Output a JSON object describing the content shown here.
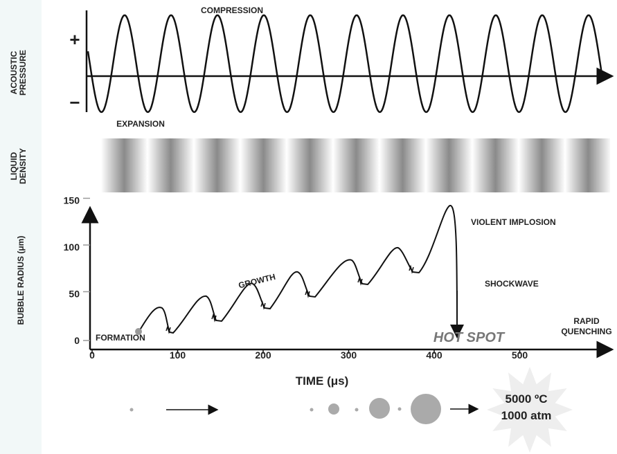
{
  "pressure_panel": {
    "side_label": [
      "ACOUSTIC",
      "PRESSURE"
    ],
    "plus": "+",
    "minus": "−",
    "compression": "COMPRESSION",
    "expansion": "EXPANSION"
  },
  "density_panel": {
    "side_label": [
      "LIQUID",
      "DENSITY"
    ]
  },
  "radius_panel": {
    "y_axis_title": "BUBBLE RADIUS (μm)",
    "x_axis_title": "TIME (μs)",
    "xticks": [
      0,
      100,
      200,
      300,
      400,
      500
    ],
    "yticks": [
      0,
      50,
      100,
      150
    ],
    "formation": "FORMATION",
    "growth": "GROWTH",
    "violent_implosion": "VIOLENT IMPLOSION",
    "shockwave": "SHOCKWAVE",
    "rapid_quenching": [
      "RAPID",
      "QUENCHING"
    ],
    "hot_spot": "HOT SPOT"
  },
  "hot_spot_box": {
    "temperature": "5000 ºC",
    "pressure": "1000 atm"
  }
}
